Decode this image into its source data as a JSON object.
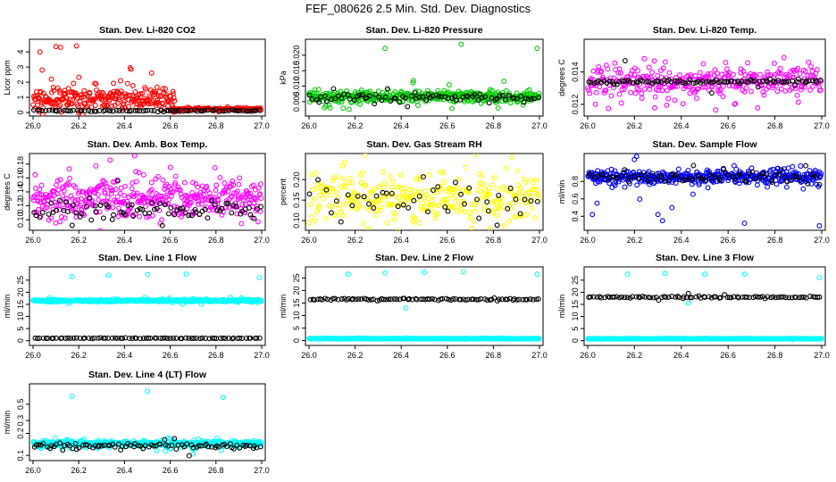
{
  "page_title": "FEF_080626 2.5 Min. Std. Dev. Diagnostics",
  "colors": {
    "red": "#ff0000",
    "green": "#00cc00",
    "magenta": "#ff00ff",
    "yellow": "#ffff00",
    "blue": "#0000ff",
    "cyan": "#00ffff",
    "black": "#000000"
  },
  "chart_data": [
    {
      "type": "scatter",
      "title": "Stan. Dev. Li-820 CO2",
      "ylabel": "Licor ppm",
      "xlim": [
        26.0,
        27.0
      ],
      "ylim": [
        0,
        4.6
      ],
      "xticks": [
        "26.0",
        "26.2",
        "26.4",
        "26.6",
        "26.8",
        "27.0"
      ],
      "yticks": [
        0,
        1,
        2,
        3,
        4
      ],
      "ytick_labels": [
        "0",
        "1",
        "2",
        "3",
        "4"
      ],
      "series": [
        {
          "color": "red",
          "mean": 0.9,
          "spread": 0.7,
          "n": 260,
          "range": [
            26.0,
            26.62
          ],
          "outliers": [
            [
              26.03,
              4.0
            ],
            [
              26.1,
              4.35
            ],
            [
              26.12,
              4.3
            ],
            [
              26.19,
              4.4
            ],
            [
              26.04,
              2.8
            ],
            [
              26.08,
              2.2
            ]
          ]
        },
        {
          "color": "red",
          "mean": 0.22,
          "spread": 0.08,
          "n": 120,
          "range": [
            26.6,
            27.0
          ],
          "outliers": []
        },
        {
          "color": "black",
          "mean": 0.12,
          "spread": 0.04,
          "n": 80,
          "range": [
            26.0,
            27.0
          ],
          "outliers": []
        }
      ]
    },
    {
      "type": "scatter",
      "title": "Stan. Dev. Li-820 Pressure",
      "ylabel": "kPa",
      "xlim": [
        26.0,
        27.0
      ],
      "ylim": [
        0.0015,
        0.024
      ],
      "xticks": [
        "26.0",
        "26.2",
        "26.4",
        "26.6",
        "26.8",
        "27.0"
      ],
      "yticks": [
        0.005,
        0.01,
        0.015,
        0.02
      ],
      "ytick_labels": [
        "0.005",
        "0.010",
        "0.015",
        "0.020"
      ],
      "series": [
        {
          "color": "green",
          "mean": 0.0066,
          "spread": 0.0015,
          "n": 420,
          "range": [
            26.0,
            27.0
          ],
          "outliers": [
            [
              26.33,
              0.0222
            ],
            [
              26.66,
              0.0235
            ],
            [
              26.99,
              0.0222
            ]
          ]
        },
        {
          "color": "black",
          "mean": 0.0063,
          "spread": 0.0012,
          "n": 80,
          "range": [
            26.0,
            27.0
          ],
          "outliers": []
        }
      ]
    },
    {
      "type": "scatter",
      "title": "Stan. Dev. Li-820 Temp.",
      "ylabel": "degrees C",
      "xlim": [
        26.0,
        27.0
      ],
      "ylim": [
        0.0115,
        0.0158
      ],
      "xticks": [
        "26.0",
        "26.2",
        "26.4",
        "26.6",
        "26.8",
        "27.0"
      ],
      "yticks": [
        0.012,
        0.014
      ],
      "ytick_labels": [
        "0.012",
        "0.014"
      ],
      "series": [
        {
          "color": "magenta",
          "mean": 0.0134,
          "spread": 0.0008,
          "n": 330,
          "range": [
            26.0,
            27.0
          ],
          "outliers": []
        },
        {
          "color": "black",
          "mean": 0.0134,
          "spread": 0.0001,
          "n": 90,
          "range": [
            26.0,
            27.0
          ],
          "outliers": [
            [
              26.16,
              0.0147
            ],
            [
              26.53,
              0.0127
            ]
          ]
        }
      ]
    },
    {
      "type": "scatter",
      "title": "Stan. Dev. Amb. Box Temp.",
      "ylabel": "degrees C",
      "xlim": [
        26.0,
        27.0
      ],
      "ylim": [
        0.09,
        0.19
      ],
      "xticks": [
        "26.0",
        "26.2",
        "26.4",
        "26.6",
        "26.8",
        "27.0"
      ],
      "yticks": [
        0.1,
        0.12,
        0.14,
        0.16,
        0.18
      ],
      "ytick_labels": [
        "0.10",
        "0.12",
        "0.14",
        "0.16",
        "0.18"
      ],
      "series": [
        {
          "color": "magenta",
          "mean": 0.13,
          "spread": 0.025,
          "n": 420,
          "range": [
            26.0,
            27.0
          ],
          "outliers": []
        },
        {
          "color": "black",
          "mean": 0.115,
          "spread": 0.012,
          "n": 80,
          "range": [
            26.0,
            27.0
          ],
          "outliers": []
        }
      ]
    },
    {
      "type": "scatter",
      "title": "Stan. Dev. Gas Stream RH",
      "ylabel": "percent",
      "xlim": [
        26.0,
        27.0
      ],
      "ylim": [
        0.085,
        0.255
      ],
      "xticks": [
        "26.0",
        "26.2",
        "26.4",
        "26.6",
        "26.8",
        "27.0"
      ],
      "yticks": [
        0.1,
        0.15,
        0.2
      ],
      "ytick_labels": [
        "0.10",
        "0.15",
        "0.20"
      ],
      "series": [
        {
          "color": "yellow",
          "mean": 0.155,
          "spread": 0.055,
          "n": 330,
          "range": [
            26.0,
            27.0
          ],
          "outliers": []
        },
        {
          "color": "black",
          "mean": 0.15,
          "spread": 0.05,
          "n": 45,
          "range": [
            26.0,
            27.0
          ],
          "outliers": []
        }
      ]
    },
    {
      "type": "scatter",
      "title": "Stan. Dev. Sample Flow",
      "ylabel": "ml/min",
      "xlim": [
        26.0,
        27.0
      ],
      "ylim": [
        0.28,
        1.08
      ],
      "xticks": [
        "26.0",
        "26.2",
        "26.4",
        "26.6",
        "26.8",
        "27.0"
      ],
      "yticks": [
        0.4,
        0.6,
        0.8
      ],
      "ytick_labels": [
        "0.4",
        "0.6",
        "0.8"
      ],
      "series": [
        {
          "color": "blue",
          "mean": 0.85,
          "spread": 0.07,
          "n": 420,
          "range": [
            26.0,
            27.0
          ],
          "outliers": [
            [
              26.02,
              0.42
            ],
            [
              26.04,
              0.55
            ],
            [
              26.3,
              0.42
            ],
            [
              26.32,
              0.35
            ],
            [
              26.36,
              0.5
            ],
            [
              26.67,
              0.32
            ],
            [
              26.99,
              0.29
            ]
          ]
        },
        {
          "color": "black",
          "mean": 0.85,
          "spread": 0.05,
          "n": 80,
          "range": [
            26.0,
            27.0
          ],
          "outliers": []
        }
      ]
    },
    {
      "type": "scatter",
      "title": "Stan. Dev. Line 1 Flow",
      "ylabel": "ml/min",
      "xlim": [
        26.0,
        27.0
      ],
      "ylim": [
        -0.5,
        29
      ],
      "xticks": [
        "26.0",
        "26.2",
        "26.4",
        "26.6",
        "26.8",
        "27.0"
      ],
      "yticks": [
        0,
        5,
        10,
        15,
        20,
        25
      ],
      "ytick_labels": [
        "0",
        "5",
        "10",
        "15",
        "20",
        "25"
      ],
      "series": [
        {
          "color": "cyan",
          "mean": 16.5,
          "spread": 0.4,
          "n": 420,
          "range": [
            26.0,
            27.0
          ],
          "outliers": [
            [
              26.17,
              26.5
            ],
            [
              26.33,
              27.0
            ],
            [
              26.5,
              27.3
            ],
            [
              26.67,
              27.5
            ],
            [
              26.99,
              26.0
            ]
          ]
        },
        {
          "color": "black",
          "mean": 1.0,
          "spread": 0.1,
          "n": 80,
          "range": [
            26.0,
            27.0
          ],
          "outliers": []
        }
      ]
    },
    {
      "type": "scatter",
      "title": "Stan. Dev. Line 2 Flow",
      "ylabel": "ml/min",
      "xlim": [
        26.0,
        27.0
      ],
      "ylim": [
        -0.5,
        28
      ],
      "xticks": [
        "26.0",
        "26.2",
        "26.4",
        "26.6",
        "26.8",
        "27.0"
      ],
      "yticks": [
        0,
        5,
        10,
        15,
        20,
        25
      ],
      "ytick_labels": [
        "0",
        "5",
        "10",
        "15",
        "20",
        "25"
      ],
      "series": [
        {
          "color": "cyan",
          "mean": 0.8,
          "spread": 0.1,
          "n": 420,
          "range": [
            26.0,
            27.0
          ],
          "outliers": [
            [
              26.17,
              26.5
            ],
            [
              26.33,
              27.0
            ],
            [
              26.5,
              27.3
            ],
            [
              26.67,
              27.5
            ],
            [
              26.99,
              26.5
            ],
            [
              26.42,
              13.0
            ]
          ]
        },
        {
          "color": "black",
          "mean": 16.5,
          "spread": 0.3,
          "n": 90,
          "range": [
            26.0,
            27.0
          ],
          "outliers": []
        }
      ]
    },
    {
      "type": "scatter",
      "title": "Stan. Dev. Line 3 Flow",
      "ylabel": "ml/min",
      "xlim": [
        26.0,
        27.0
      ],
      "ylim": [
        -0.5,
        29
      ],
      "xticks": [
        "26.0",
        "26.2",
        "26.4",
        "26.6",
        "26.8",
        "27.0"
      ],
      "yticks": [
        0,
        5,
        10,
        15,
        20,
        25
      ],
      "ytick_labels": [
        "0",
        "5",
        "10",
        "15",
        "20",
        "25"
      ],
      "series": [
        {
          "color": "cyan",
          "mean": 0.8,
          "spread": 0.1,
          "n": 420,
          "range": [
            26.0,
            27.0
          ],
          "outliers": [
            [
              26.17,
              27.5
            ],
            [
              26.33,
              27.8
            ],
            [
              26.5,
              27.5
            ],
            [
              26.67,
              27.5
            ],
            [
              26.99,
              26.0
            ],
            [
              26.43,
              15.5
            ]
          ]
        },
        {
          "color": "black",
          "mean": 18.0,
          "spread": 0.3,
          "n": 90,
          "range": [
            26.0,
            27.0
          ],
          "outliers": [
            [
              26.43,
              19.5
            ]
          ]
        }
      ]
    },
    {
      "type": "scatter",
      "title": "Stan. Dev. Line 4 (LT) Flow",
      "ylabel": "ml/min",
      "xlim": [
        26.0,
        27.0
      ],
      "ylim": [
        0.095,
        0.85
      ],
      "y_scale": "log",
      "xticks": [
        "26.0",
        "26.2",
        "26.4",
        "26.6",
        "26.8",
        "27.0"
      ],
      "yticks": [
        0.1,
        0.2,
        0.3,
        0.5
      ],
      "ytick_labels": [
        "0.1",
        "0.2",
        "0.3",
        "0.5"
      ],
      "series": [
        {
          "color": "cyan",
          "mean": 0.145,
          "spread": 0.012,
          "n": 420,
          "range": [
            26.0,
            27.0
          ],
          "outliers": [
            [
              26.17,
              0.64
            ],
            [
              26.5,
              0.75
            ],
            [
              26.83,
              0.62
            ]
          ]
        },
        {
          "color": "black",
          "mean": 0.135,
          "spread": 0.01,
          "n": 90,
          "range": [
            26.0,
            27.0
          ],
          "outliers": []
        }
      ]
    }
  ]
}
